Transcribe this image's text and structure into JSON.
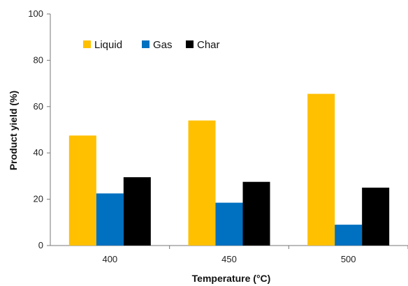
{
  "chart_data": {
    "type": "bar",
    "title": "",
    "xlabel": "Temperature (°C)",
    "ylabel": "Product yield (%)",
    "categories": [
      "400",
      "450",
      "500"
    ],
    "ylim": [
      0,
      100
    ],
    "yticks": [
      0,
      20,
      40,
      60,
      80,
      100
    ],
    "grid": false,
    "legend_position": "top-left",
    "series": [
      {
        "name": "Liquid",
        "color": "#FFC000",
        "values": [
          47.5,
          54,
          65.5
        ]
      },
      {
        "name": "Gas",
        "color": "#0070C0",
        "values": [
          22.5,
          18.5,
          9
        ]
      },
      {
        "name": "Char",
        "color": "#000000",
        "values": [
          29.5,
          27.5,
          25
        ]
      }
    ]
  }
}
